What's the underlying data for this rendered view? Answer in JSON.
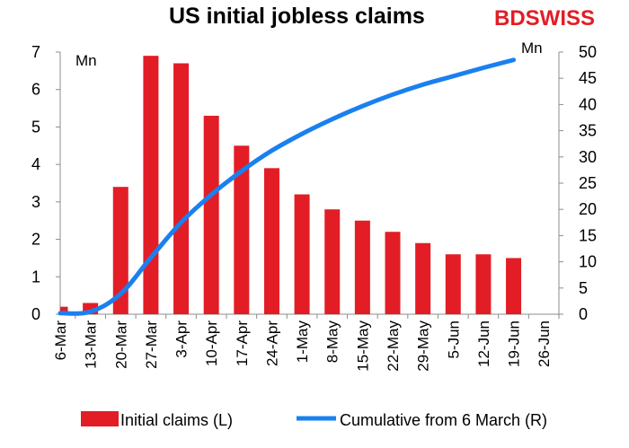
{
  "brand": {
    "logo_text_1": "BD",
    "logo_text_2": "SWISS",
    "color": "#e31d25"
  },
  "chart_data": {
    "type": "bar",
    "title": "US initial jobless claims",
    "categories": [
      "6-Mar",
      "13-Mar",
      "20-Mar",
      "27-Mar",
      "3-Apr",
      "10-Apr",
      "17-Apr",
      "24-Apr",
      "1-May",
      "8-May",
      "15-May",
      "22-May",
      "29-May",
      "5-Jun",
      "12-Jun",
      "19-Jun",
      "26-Jun"
    ],
    "left_axis": {
      "unit": "Mn",
      "ylim": [
        0,
        7
      ],
      "ticks": [
        "0",
        "1",
        "2",
        "3",
        "4",
        "5",
        "6",
        "7"
      ]
    },
    "right_axis": {
      "unit": "Mn",
      "ylim": [
        0,
        50
      ],
      "ticks": [
        "0",
        "5",
        "10",
        "15",
        "20",
        "25",
        "30",
        "35",
        "40",
        "45",
        "50"
      ]
    },
    "series": [
      {
        "name": "Initial claims (L)",
        "type": "bar",
        "axis": "left",
        "color": "#e31d25",
        "values": [
          0.2,
          0.3,
          3.4,
          6.9,
          6.7,
          5.3,
          4.5,
          3.9,
          3.2,
          2.8,
          2.5,
          2.2,
          1.9,
          1.6,
          1.6,
          1.5,
          null
        ]
      },
      {
        "name": "Cumulative from 6 March (R)",
        "type": "line",
        "axis": "right",
        "color": "#1a80f0",
        "values": [
          0.2,
          0.5,
          3.9,
          10.8,
          17.5,
          22.8,
          27.3,
          31.2,
          34.4,
          37.2,
          39.7,
          41.9,
          43.8,
          45.4,
          47.0,
          48.5,
          null
        ]
      }
    ],
    "legend": "bottom",
    "grid": false
  }
}
